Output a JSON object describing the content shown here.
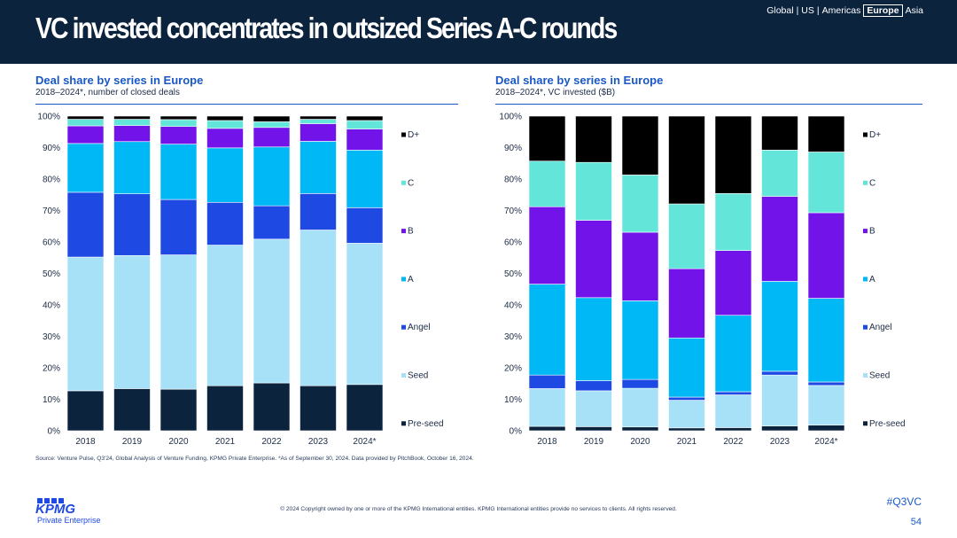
{
  "header": {
    "title": "VC invested concentrates in outsized Series A-C rounds",
    "regions": [
      "Global",
      "US",
      "Americas",
      "Europe",
      "Asia"
    ],
    "active_region": "Europe"
  },
  "charts": [
    {
      "title": "Deal share by series in Europe",
      "subtitle": "2018–2024*, number of closed deals"
    },
    {
      "title": "Deal share by series in Europe",
      "subtitle": "2018–2024*, VC invested ($B)"
    }
  ],
  "chart_data": [
    {
      "type": "bar",
      "stacked": true,
      "title": "Deal share by series in Europe",
      "subtitle": "2018–2024*, number of closed deals",
      "categories": [
        "2018",
        "2019",
        "2020",
        "2021",
        "2022",
        "2023",
        "2024*"
      ],
      "y_ticks": [
        "0%",
        "10%",
        "20%",
        "30%",
        "40%",
        "50%",
        "60%",
        "70%",
        "80%",
        "90%",
        "100%"
      ],
      "ylim": [
        0,
        100
      ],
      "series": [
        {
          "name": "Pre-seed",
          "color": "#0c233e",
          "values": [
            12.7,
            13.4,
            13.2,
            14.3,
            15.2,
            14.3,
            14.7
          ]
        },
        {
          "name": "Seed",
          "color": "#a7e1f8",
          "values": [
            42.5,
            42.3,
            42.7,
            44.7,
            45.7,
            49.5,
            44.9
          ]
        },
        {
          "name": "Angel",
          "color": "#1e49e2",
          "values": [
            20.6,
            19.6,
            17.6,
            13.6,
            10.6,
            11.6,
            11.3
          ]
        },
        {
          "name": "A",
          "color": "#00b8f5",
          "values": [
            15.5,
            16.6,
            17.6,
            17.3,
            18.7,
            16.6,
            18.3
          ]
        },
        {
          "name": "B",
          "color": "#7213ea",
          "values": [
            5.6,
            5.1,
            5.6,
            6.2,
            6.2,
            5.6,
            6.7
          ]
        },
        {
          "name": "C",
          "color": "#63e6d9",
          "values": [
            2.1,
            2.0,
            2.2,
            2.5,
            1.8,
            1.4,
            2.7
          ]
        },
        {
          "name": "D+",
          "color": "#000000",
          "values": [
            1.0,
            1.0,
            1.1,
            1.4,
            1.8,
            1.0,
            1.4
          ]
        }
      ],
      "legend": [
        "D+",
        "C",
        "B",
        "A",
        "Angel",
        "Seed",
        "Pre-seed"
      ]
    },
    {
      "type": "bar",
      "stacked": true,
      "title": "Deal share by series in Europe",
      "subtitle": "2018–2024*, VC invested ($B)",
      "categories": [
        "2018",
        "2019",
        "2020",
        "2021",
        "2022",
        "2023",
        "2024*"
      ],
      "y_ticks": [
        "0%",
        "10%",
        "20%",
        "30%",
        "40%",
        "50%",
        "60%",
        "70%",
        "80%",
        "90%",
        "100%"
      ],
      "ylim": [
        0,
        100
      ],
      "series": [
        {
          "name": "Pre-seed",
          "color": "#0c233e",
          "values": [
            1.4,
            1.3,
            1.2,
            0.9,
            1.0,
            1.5,
            1.8
          ]
        },
        {
          "name": "Seed",
          "color": "#a7e1f8",
          "values": [
            12.0,
            11.4,
            12.3,
            8.8,
            10.4,
            16.2,
            12.6
          ]
        },
        {
          "name": "Angel",
          "color": "#1e49e2",
          "values": [
            4.3,
            3.2,
            2.8,
            1.0,
            1.0,
            1.2,
            1.1
          ]
        },
        {
          "name": "A",
          "color": "#00b8f5",
          "values": [
            28.9,
            26.4,
            25.0,
            18.8,
            24.3,
            28.6,
            26.6
          ]
        },
        {
          "name": "B",
          "color": "#7213ea",
          "values": [
            24.6,
            24.6,
            21.8,
            22.0,
            20.6,
            27.0,
            27.2
          ]
        },
        {
          "name": "C",
          "color": "#63e6d9",
          "values": [
            14.5,
            18.4,
            18.2,
            20.6,
            18.1,
            14.7,
            19.3
          ]
        },
        {
          "name": "D+",
          "color": "#000000",
          "values": [
            14.3,
            14.7,
            18.7,
            27.9,
            24.6,
            10.8,
            11.4
          ]
        }
      ],
      "legend": [
        "D+",
        "C",
        "B",
        "A",
        "Angel",
        "Seed",
        "Pre-seed"
      ]
    }
  ],
  "footer": {
    "source": "Source: Venture Pulse, Q3'24, Global Analysis of Venture Funding, KPMG Private Enterprise. *As of September 30, 2024. Data provided by PitchBook, October 16, 2024.",
    "copyright": "© 2024 Copyright owned by one or more of the KPMG International entities. KPMG International entities provide no services to clients. All rights reserved.",
    "logo_text": "KPMG",
    "logo_sub": "Private Enterprise",
    "hashtag": "#Q3VC",
    "page_number": "54"
  }
}
